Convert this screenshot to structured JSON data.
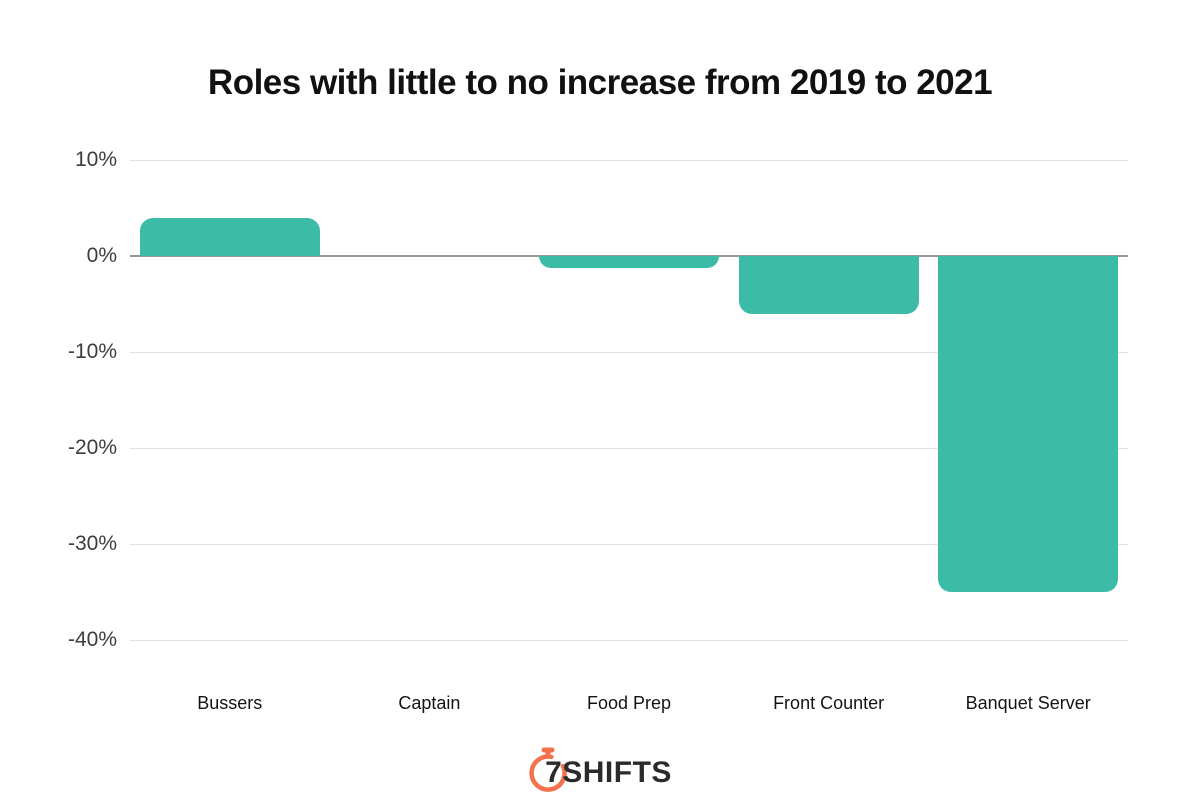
{
  "chart_data": {
    "type": "bar",
    "title": "Roles with little to no increase from 2019 to 2021",
    "categories": [
      "Bussers",
      "Captain",
      "Food Prep",
      "Front Counter",
      "Banquet Server"
    ],
    "values": [
      4,
      0,
      -1.3,
      -6,
      -35
    ],
    "xlabel": "",
    "ylabel": "",
    "ylim": [
      -40,
      10
    ],
    "yticks": [
      {
        "value": 10,
        "label": "10%"
      },
      {
        "value": 0,
        "label": "0%"
      },
      {
        "value": -10,
        "label": "-10%"
      },
      {
        "value": -20,
        "label": "-20%"
      },
      {
        "value": -30,
        "label": "-30%"
      },
      {
        "value": -40,
        "label": "-40%"
      }
    ],
    "grid": true,
    "legend": false,
    "bar_color": "#3CBCA6",
    "grid_color": "#E3E3E3",
    "zero_line_color": "#979797"
  },
  "footer": {
    "logo_text": "7SHIFTS",
    "logo_icon": "stopwatch-icon",
    "logo_icon_color": "#F3714D",
    "logo_text_color": "#2B2B2B"
  }
}
